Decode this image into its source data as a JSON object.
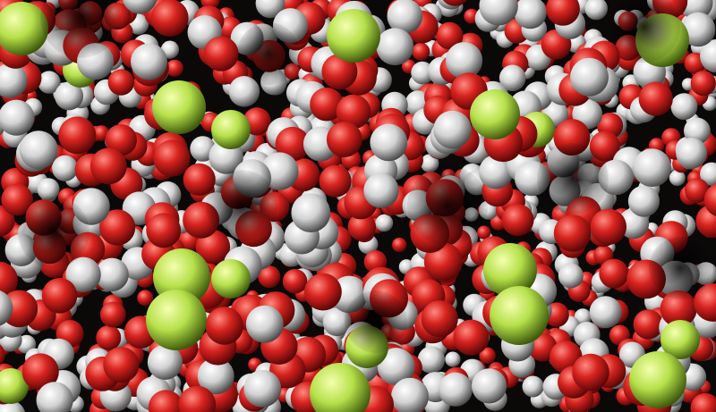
{
  "image": {
    "subject": "molecular-spheres",
    "colors": {
      "background": "#0b0808",
      "red_highlight": "#ff8a80",
      "red": "#d8231f",
      "red_shadow": "#5a0606",
      "white_highlight": "#ffffff",
      "white": "#d2d2d2",
      "white_shadow": "#4a4a4a",
      "green_highlight": "#f4ffb0",
      "green": "#b6e04a",
      "green_shadow": "#3e5a0c"
    }
  }
}
